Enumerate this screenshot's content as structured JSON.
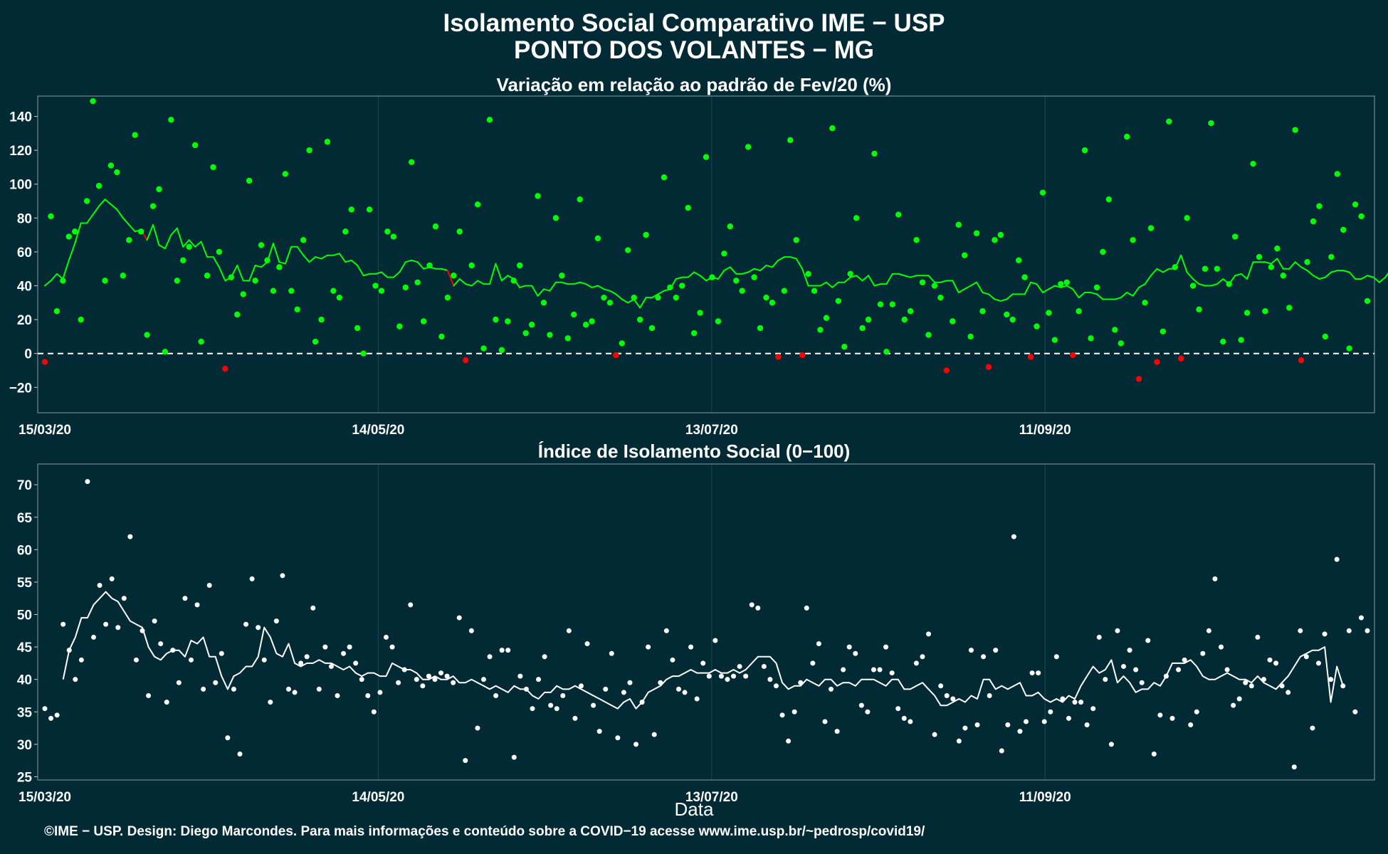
{
  "title_line1": "Isolamento Social Comparativo IME − USP",
  "title_line2": "PONTO DOS VOLANTES − MG",
  "xlabel": "Data",
  "footer": "©IME − USP. Design: Diego Marcondes. Para mais informações e conteúdo sobre a COVID−19 acesse www.ime.usp.br/~pedrosp/covid19/",
  "colors": {
    "background": "#012a35",
    "positive": "#00ff00",
    "negative": "#ff0000",
    "index": "#ffffff",
    "zero_line": "#ffffff",
    "grid": "#1d4652"
  },
  "chart_data": [
    {
      "type": "scatter",
      "title": "Variação em relação ao padrão de Fev/20 (%)",
      "xlabel": "",
      "ylabel": "",
      "x_start": "15/03/20",
      "x_end": "08/11/20",
      "x_ticks": [
        "15/03/20",
        "14/05/20",
        "13/07/20",
        "11/09/20"
      ],
      "y_ticks": [
        -20,
        0,
        20,
        40,
        60,
        80,
        100,
        120,
        140
      ],
      "ylim": [
        -35,
        152
      ],
      "reference_line": 0,
      "grid": true,
      "points": [
        -5,
        81,
        25,
        43,
        69,
        72,
        20,
        90,
        149,
        99,
        43,
        111,
        107,
        46,
        67,
        129,
        72,
        11,
        87,
        97,
        1,
        138,
        43,
        55,
        63,
        123,
        7,
        46,
        110,
        60,
        -9,
        45,
        23,
        35,
        102,
        43,
        64,
        55,
        37,
        51,
        106,
        37,
        26,
        67,
        120,
        7,
        20,
        125,
        37,
        33,
        72,
        85,
        15,
        0,
        85,
        40,
        37,
        72,
        69,
        16,
        39,
        113,
        42,
        19,
        52,
        75,
        10,
        33,
        46,
        72,
        -4,
        52,
        88,
        3,
        138,
        20,
        2,
        19,
        43,
        52,
        12,
        17,
        93,
        30,
        11,
        80,
        46,
        9,
        23,
        91,
        17,
        19,
        68,
        33,
        30,
        -1,
        6,
        61,
        33,
        20,
        70,
        15,
        33,
        104,
        39,
        33,
        40,
        86,
        12,
        24,
        116,
        45,
        19,
        59,
        75,
        43,
        37,
        122,
        45,
        15,
        33,
        30,
        -2,
        37,
        126,
        67,
        -1,
        47,
        37,
        14,
        21,
        133,
        31,
        4,
        47,
        80,
        15,
        20,
        118,
        29,
        1,
        29,
        82,
        20,
        25,
        67,
        42,
        11,
        40,
        33,
        -10,
        19,
        76,
        58,
        10,
        71,
        25,
        -8,
        67,
        70,
        23,
        20,
        55,
        45,
        -2,
        16,
        95,
        24,
        8,
        41,
        42,
        -1,
        25,
        120,
        9,
        39,
        60,
        91,
        14,
        6,
        128,
        67,
        -15,
        30,
        74,
        -5,
        13,
        137,
        51,
        -3,
        80,
        40,
        26,
        50,
        136,
        50,
        7,
        41,
        69,
        8,
        24,
        112,
        57,
        25,
        51,
        62,
        46,
        27,
        132,
        -4,
        54,
        78,
        87,
        10,
        57,
        106,
        73,
        3,
        88,
        81,
        31
      ],
      "moving_average": [
        40,
        43,
        47,
        44,
        55,
        65,
        77,
        77,
        82,
        87,
        91,
        88,
        85,
        80,
        76,
        72,
        73,
        67,
        76,
        64,
        62,
        70,
        74,
        63,
        67,
        63,
        66,
        57,
        57,
        51,
        43,
        45,
        52,
        43,
        43,
        52,
        51,
        54,
        65,
        54,
        53,
        63,
        63,
        58,
        54,
        57,
        56,
        58,
        58,
        59,
        54,
        55,
        52,
        46,
        47,
        47,
        48,
        45,
        45,
        48,
        54,
        55,
        54,
        50,
        51,
        50,
        50,
        49,
        40,
        44,
        41,
        40,
        43,
        41,
        41,
        53,
        43,
        46,
        44,
        39,
        40,
        40,
        34,
        38,
        37,
        42,
        42,
        41,
        41,
        42,
        41,
        39,
        40,
        38,
        37,
        35,
        32,
        30,
        32,
        27,
        33,
        33,
        35,
        37,
        38,
        44,
        45,
        45,
        48,
        46,
        43,
        45,
        44,
        49,
        51,
        47,
        47,
        48,
        50,
        49,
        52,
        51,
        55,
        57,
        57,
        56,
        50,
        40,
        40,
        40,
        42,
        39,
        42,
        42,
        45,
        46,
        43,
        46,
        40,
        41,
        41,
        47,
        47,
        46,
        45,
        46,
        46,
        46,
        42,
        42,
        43,
        43,
        36,
        38,
        40,
        42,
        36,
        35,
        32,
        31,
        32,
        35,
        35,
        35,
        42,
        41,
        36,
        38,
        40,
        39,
        40,
        38,
        33,
        36,
        36,
        35,
        32,
        32,
        32,
        33,
        36,
        34,
        39,
        41,
        46,
        50,
        48,
        50,
        50,
        58,
        48,
        44,
        41,
        40,
        40,
        41,
        44,
        41,
        46,
        47,
        44,
        54,
        54,
        54,
        53,
        56,
        50,
        50,
        54,
        51,
        49,
        46,
        44,
        45,
        48,
        49,
        49,
        48,
        44,
        44,
        46,
        45,
        42,
        45,
        50,
        52,
        58,
        55,
        58,
        59,
        61,
        61,
        62
      ]
    },
    {
      "type": "scatter",
      "title": "Índice de Isolamento Social (0−100)",
      "xlabel": "Data",
      "ylabel": "",
      "x_start": "15/03/20",
      "x_end": "08/11/20",
      "x_ticks": [
        "15/03/20",
        "14/05/20",
        "13/07/20",
        "11/09/20"
      ],
      "y_ticks": [
        25,
        30,
        35,
        40,
        45,
        50,
        55,
        60,
        65,
        70
      ],
      "ylim": [
        24.5,
        73.2
      ],
      "grid": true,
      "points": [
        35.5,
        34.0,
        34.5,
        48.5,
        44.5,
        40.0,
        43.0,
        70.5,
        46.5,
        54.5,
        48.5,
        55.5,
        48.0,
        52.5,
        62.0,
        43.0,
        47.5,
        37.5,
        49.0,
        45.5,
        36.5,
        44.5,
        39.5,
        52.5,
        43.0,
        51.5,
        38.5,
        54.5,
        39.5,
        44.0,
        31.0,
        38.5,
        28.5,
        48.5,
        55.5,
        48.0,
        43.0,
        36.5,
        49.0,
        56.0,
        38.5,
        38.0,
        42.5,
        43.5,
        51.0,
        38.5,
        45.0,
        42.0,
        37.5,
        44.0,
        45.0,
        42.5,
        40.0,
        37.5,
        35.0,
        38.0,
        46.5,
        45.0,
        39.5,
        41.5,
        51.5,
        40.0,
        39.0,
        40.5,
        40.0,
        41.0,
        40.5,
        39.5,
        49.5,
        27.5,
        47.5,
        32.5,
        40.0,
        43.5,
        37.5,
        44.5,
        44.5,
        28.0,
        40.5,
        38.5,
        35.5,
        40.0,
        43.5,
        36.0,
        35.5,
        37.5,
        47.5,
        34.0,
        39.0,
        45.5,
        36.0,
        32.0,
        38.5,
        44.0,
        31.0,
        38.0,
        39.5,
        30.0,
        36.5,
        45.0,
        31.5,
        39.5,
        47.5,
        43.0,
        38.5,
        38.0,
        45.0,
        37.0,
        42.5,
        40.5,
        46.0,
        40.5,
        40.0,
        40.5,
        42.0,
        40.5,
        51.5,
        51.0,
        42.0,
        40.0,
        39.0,
        34.5,
        30.5,
        35.0,
        39.5,
        51.0,
        42.5,
        45.5,
        33.5,
        38.5,
        32.0,
        41.5,
        45.0,
        44.0,
        36.0,
        35.0,
        41.5,
        41.5,
        45.0,
        41.0,
        35.5,
        34.0,
        33.5,
        42.5,
        43.5,
        47.0,
        31.5,
        39.0,
        37.5,
        37.0,
        30.5,
        32.5,
        44.5,
        33.0,
        43.5,
        37.5,
        44.5,
        29.0,
        33.0,
        62.0,
        32.0,
        33.5,
        41.0,
        41.0,
        33.5,
        35.0,
        43.5,
        37.0,
        34.0,
        36.5,
        36.5,
        33.0,
        35.5,
        46.5,
        40.0,
        30.0,
        47.5,
        42.0,
        44.5,
        41.5,
        39.5,
        46.0,
        28.5,
        34.5,
        40.5,
        34.0,
        41.5,
        43.0,
        33.0,
        35.0,
        44.0,
        47.5,
        55.5,
        45.0,
        41.5,
        36.0,
        37.0,
        39.5,
        39.0,
        46.5,
        40.0,
        43.0,
        42.5,
        39.0,
        38.0,
        26.5,
        47.5,
        43.5,
        32.5,
        42.5,
        47.0,
        40.0,
        58.5,
        39.0,
        47.5,
        35.0,
        49.5,
        47.5
      ],
      "moving_average": [
        null,
        null,
        null,
        40.0,
        44.5,
        46.5,
        49.5,
        49.5,
        51.5,
        52.5,
        53.5,
        52.5,
        52.0,
        50.5,
        49.0,
        48.5,
        48.0,
        45.0,
        43.5,
        43.0,
        44.0,
        44.5,
        44.5,
        43.5,
        46.0,
        45.5,
        46.5,
        43.5,
        43.5,
        40.5,
        38.5,
        40.5,
        41.0,
        42.0,
        42.0,
        43.5,
        48.0,
        46.5,
        44.0,
        43.5,
        45.5,
        42.5,
        42.0,
        42.5,
        42.5,
        43.0,
        42.5,
        42.5,
        42.0,
        41.5,
        42.0,
        41.0,
        40.5,
        41.0,
        41.0,
        40.5,
        40.5,
        42.5,
        42.0,
        41.5,
        41.5,
        41.0,
        40.0,
        40.0,
        40.5,
        40.0,
        40.0,
        40.5,
        39.5,
        39.5,
        40.0,
        39.5,
        39.0,
        38.5,
        39.0,
        38.5,
        38.0,
        39.0,
        38.5,
        38.5,
        37.5,
        37.0,
        38.0,
        38.0,
        39.0,
        38.5,
        38.5,
        39.0,
        38.5,
        38.0,
        37.5,
        37.0,
        36.5,
        36.0,
        35.5,
        36.5,
        37.0,
        35.5,
        36.5,
        38.0,
        38.5,
        39.0,
        40.0,
        40.5,
        40.5,
        41.0,
        41.5,
        41.0,
        41.0,
        41.0,
        41.5,
        41.0,
        41.0,
        41.5,
        41.0,
        41.5,
        42.5,
        43.5,
        43.5,
        43.5,
        42.5,
        39.5,
        38.5,
        39.0,
        39.0,
        40.0,
        39.5,
        39.0,
        40.0,
        40.0,
        39.0,
        39.5,
        39.5,
        39.0,
        40.0,
        40.0,
        40.0,
        39.5,
        39.0,
        40.0,
        40.0,
        38.5,
        38.5,
        39.0,
        39.5,
        38.5,
        37.5,
        36.0,
        36.0,
        36.5,
        37.0,
        36.5,
        37.5,
        37.0,
        40.0,
        40.0,
        38.5,
        39.0,
        38.5,
        39.0,
        39.5,
        37.5,
        37.5,
        38.0,
        37.0,
        36.5,
        37.0,
        36.5,
        37.5,
        37.0,
        39.0,
        40.5,
        42.0,
        41.0,
        41.5,
        43.0,
        39.5,
        40.5,
        39.5,
        38.0,
        38.5,
        38.5,
        39.5,
        39.0,
        40.5,
        42.5,
        42.5,
        42.5,
        43.0,
        42.0,
        40.5,
        40.0,
        40.0,
        40.5,
        41.0,
        40.5,
        40.0,
        40.0,
        39.5,
        40.5,
        39.5,
        39.0,
        38.5,
        39.5,
        40.5,
        42.0,
        43.5,
        44.0,
        44.5,
        44.5,
        45.0,
        36.5,
        42.0,
        39.0
      ]
    }
  ]
}
